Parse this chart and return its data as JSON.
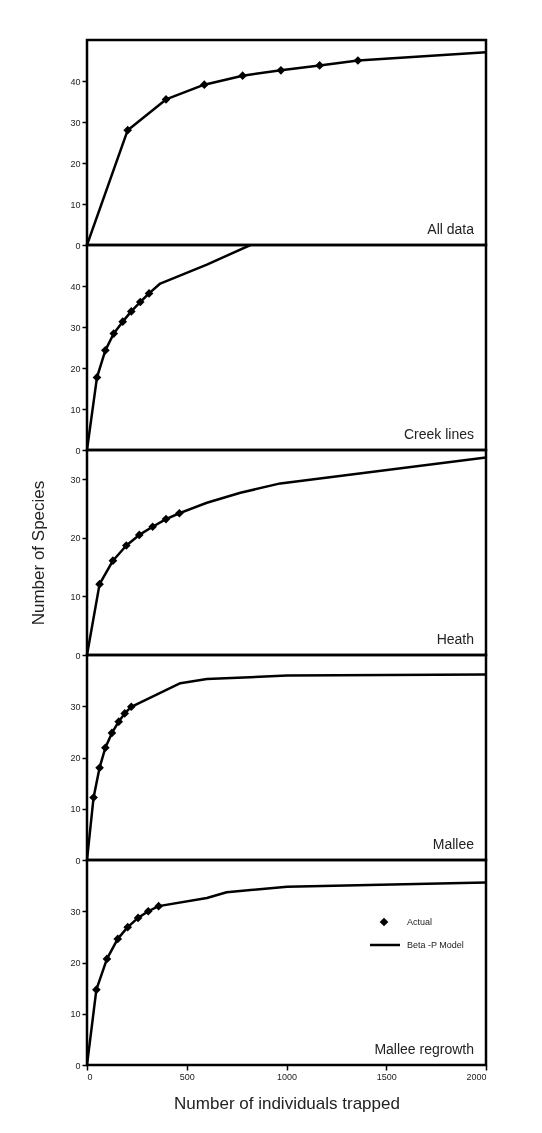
{
  "chart_data": [
    {
      "type": "line",
      "title": "All data",
      "xlim": [
        0,
        2000
      ],
      "xticks": [
        0,
        500,
        1000,
        1500,
        2000
      ],
      "ylim": [
        0,
        50
      ],
      "yticks": [
        0,
        10,
        20,
        30,
        40
      ],
      "tick_labels": "y",
      "series": [
        {
          "type": "scatter",
          "marker": "diamond",
          "color": "#000000",
          "x": [
            204,
            396,
            588,
            780,
            972,
            1166,
            1358
          ],
          "values": [
            28.0,
            35.5,
            39.1,
            41.3,
            42.6,
            43.8,
            45.0
          ]
        },
        {
          "type": "line",
          "color": "#000000",
          "x": [
            0,
            204,
            396,
            588,
            780,
            972,
            1166,
            1358,
            2000
          ],
          "values": [
            0,
            28.0,
            35.5,
            39.1,
            41.3,
            42.6,
            43.8,
            45.0,
            47.0
          ]
        }
      ]
    },
    {
      "type": "line",
      "title": "Creek lines",
      "xlim": [
        0,
        2000
      ],
      "xticks": [
        0,
        500,
        1000,
        1500,
        2000
      ],
      "ylim": [
        0,
        50
      ],
      "yticks": [
        0,
        10,
        20,
        30,
        40
      ],
      "tick_labels": "y",
      "series": [
        {
          "type": "scatter",
          "marker": "diamond",
          "color": "#000000",
          "x": [
            50,
            92,
            134,
            179,
            222,
            267,
            311
          ],
          "values": [
            17.7,
            24.3,
            28.4,
            31.3,
            33.8,
            36.1,
            38.2
          ]
        },
        {
          "type": "line",
          "color": "#000000",
          "x": [
            0,
            50,
            92,
            134,
            179,
            222,
            267,
            311,
            367,
            601,
            819
          ],
          "values": [
            0,
            17.7,
            24.3,
            28.4,
            31.3,
            33.8,
            36.1,
            38.2,
            40.6,
            45.2,
            50
          ]
        }
      ]
    },
    {
      "type": "line",
      "title": "Heath",
      "ylabel": "Number of Species",
      "xlim": [
        0,
        2000
      ],
      "xticks": [
        0,
        500,
        1000,
        1500,
        2000
      ],
      "ylim": [
        0,
        35
      ],
      "yticks": [
        0,
        10,
        20,
        30
      ],
      "tick_labels": "y",
      "series": [
        {
          "type": "scatter",
          "marker": "diamond",
          "color": "#000000",
          "x": [
            63,
            130,
            197,
            262,
            329,
            396,
            463
          ],
          "values": [
            12.1,
            16.1,
            18.7,
            20.5,
            21.9,
            23.2,
            24.2
          ]
        },
        {
          "type": "line",
          "color": "#000000",
          "x": [
            0,
            63,
            130,
            197,
            262,
            329,
            396,
            463,
            601,
            769,
            969,
            2000
          ],
          "values": [
            0,
            12.1,
            16.1,
            18.7,
            20.5,
            21.9,
            23.2,
            24.2,
            26.0,
            27.7,
            29.3,
            33.7
          ]
        }
      ]
    },
    {
      "type": "line",
      "title": "Mallee",
      "xlim": [
        0,
        2000
      ],
      "xticks": [
        0,
        500,
        1000,
        1500,
        2000
      ],
      "ylim": [
        0,
        40
      ],
      "yticks": [
        0,
        10,
        20,
        30
      ],
      "tick_labels": "y",
      "series": [
        {
          "type": "scatter",
          "marker": "diamond",
          "color": "#000000",
          "x": [
            33,
            63,
            92,
            125,
            159,
            189,
            222
          ],
          "values": [
            12.2,
            18.0,
            21.9,
            24.8,
            27.0,
            28.6,
            29.9
          ]
        },
        {
          "type": "line",
          "color": "#000000",
          "x": [
            0,
            33,
            63,
            92,
            125,
            159,
            189,
            222,
            468,
            601,
            1003,
            2000
          ],
          "values": [
            0,
            12.2,
            18.0,
            21.9,
            24.8,
            27.0,
            28.6,
            29.9,
            34.5,
            35.3,
            36.0,
            36.2
          ]
        }
      ]
    },
    {
      "type": "line",
      "title": "Mallee regrowth",
      "xlabel": "Number of individuals trapped",
      "xlim": [
        0,
        2000
      ],
      "xticks": [
        0,
        500,
        1000,
        1500,
        2000
      ],
      "ylim": [
        0,
        40
      ],
      "yticks": [
        0,
        10,
        20,
        30
      ],
      "legend": "top right",
      "series": [
        {
          "name": "Actual",
          "type": "scatter",
          "marker": "diamond",
          "color": "#000000",
          "x": [
            47,
            100,
            154,
            204,
            256,
            307,
            359
          ],
          "values": [
            14.7,
            20.7,
            24.6,
            26.9,
            28.7,
            30.0,
            31.0
          ]
        },
        {
          "name": "Beta -P Model",
          "type": "line",
          "color": "#000000",
          "x": [
            0,
            47,
            100,
            154,
            204,
            256,
            307,
            359,
            601,
            700,
            1003,
            2000
          ],
          "values": [
            0,
            14.7,
            20.7,
            24.6,
            26.9,
            28.7,
            30.0,
            31.0,
            32.6,
            33.7,
            34.8,
            35.6
          ]
        }
      ]
    }
  ]
}
